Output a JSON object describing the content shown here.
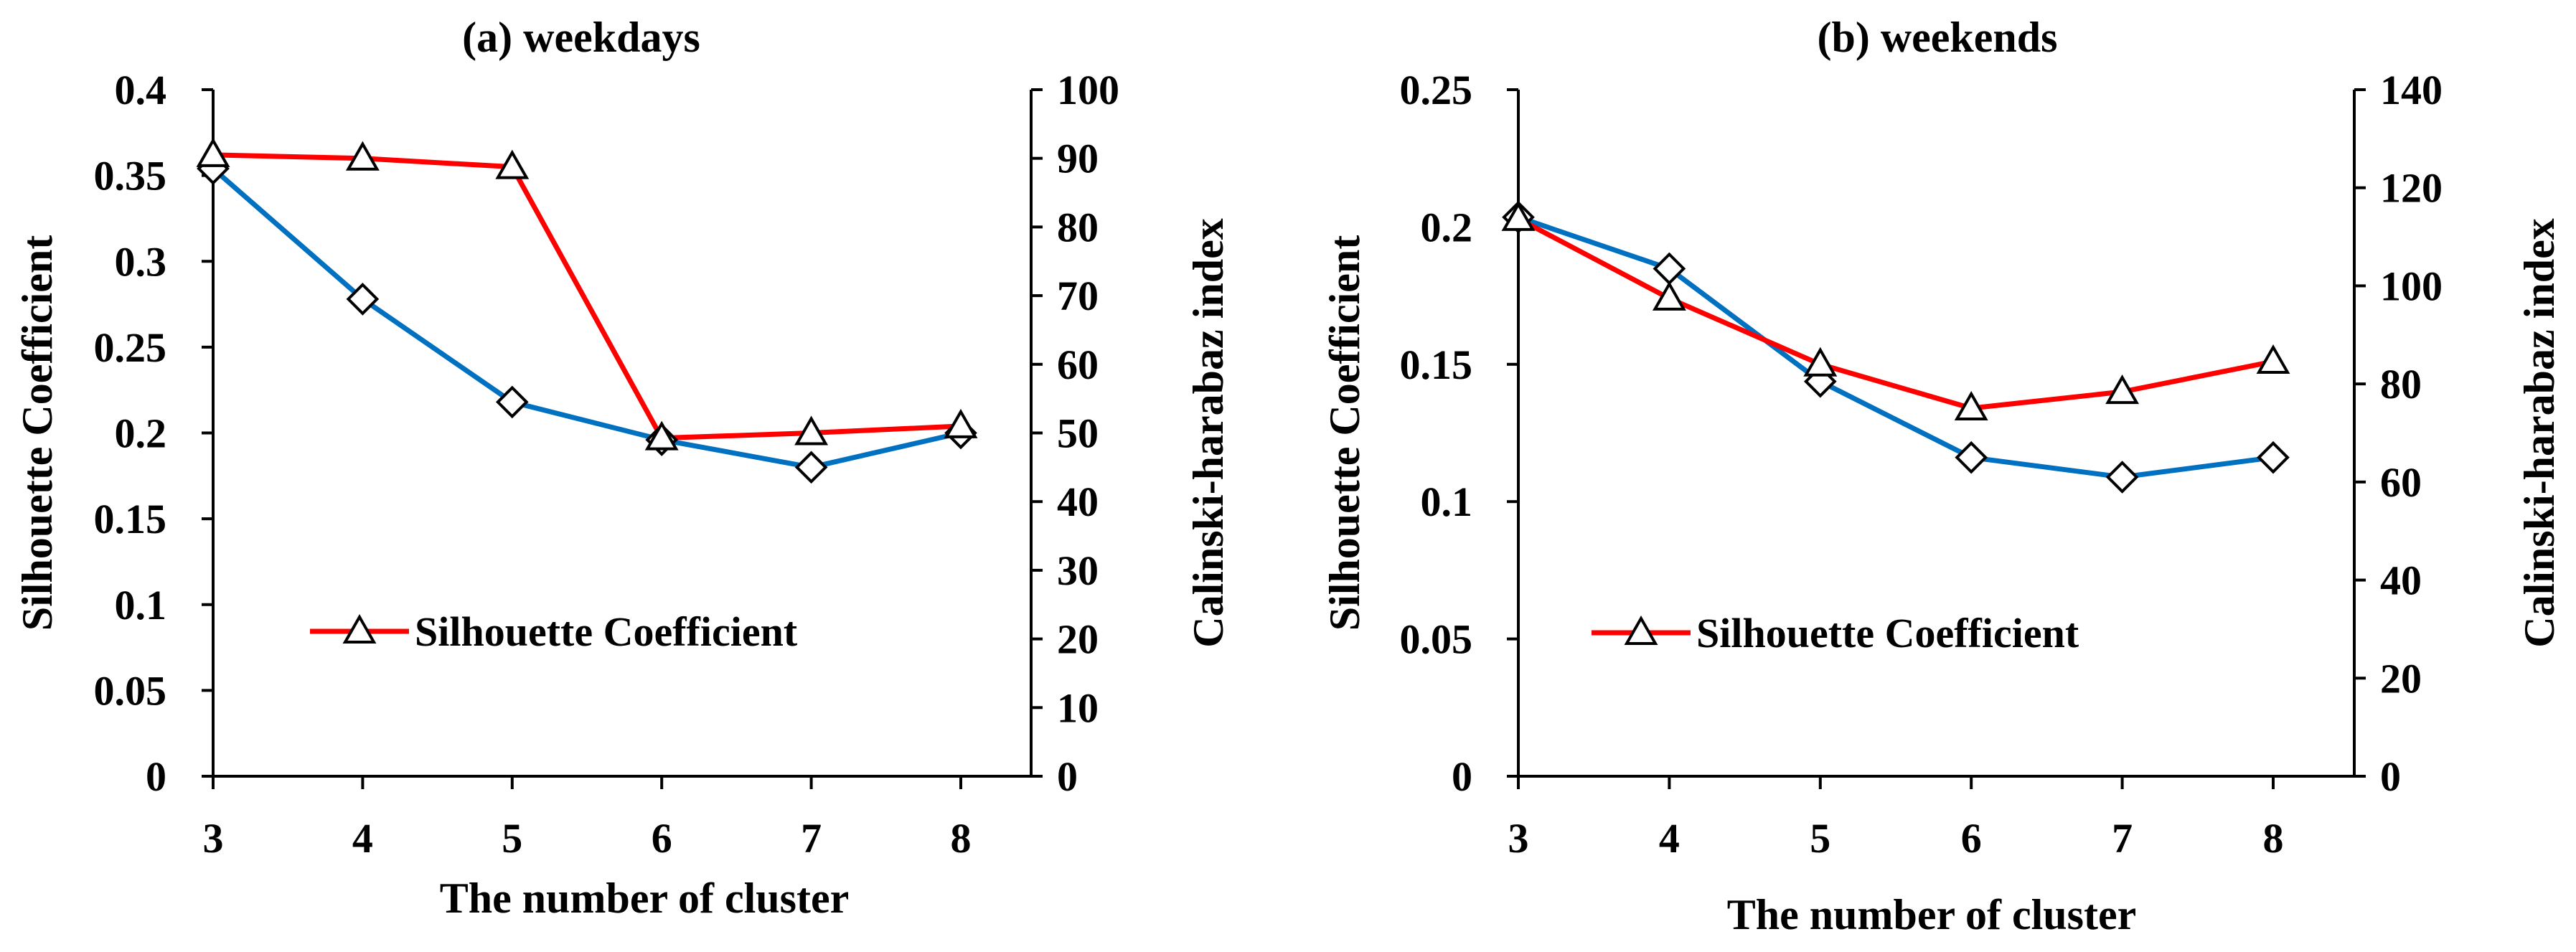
{
  "chart_data": [
    {
      "type": "line",
      "title": "(a) weekdays",
      "xlabel": "The number of cluster",
      "ylabel_left": "Silhouette Coefficient",
      "ylabel_right": "Calinski-harabaz index",
      "x": [
        3,
        4,
        5,
        6,
        7,
        8
      ],
      "x_tick_labels": [
        "3",
        "4",
        "5",
        "6",
        "7",
        "8"
      ],
      "ylim_left": [
        0,
        0.4
      ],
      "yticks_left": [
        "0",
        "0.05",
        "0.1",
        "0.15",
        "0.2",
        "0.25",
        "0.3",
        "0.35",
        "0.4"
      ],
      "ylim_right": [
        0,
        100
      ],
      "yticks_right": [
        "0",
        "10",
        "20",
        "30",
        "40",
        "50",
        "60",
        "70",
        "80",
        "90",
        "100"
      ],
      "series": [
        {
          "name": "Silhouette Coefficient",
          "axis": "left",
          "color": "#ff0000",
          "marker": "triangle",
          "values": [
            0.362,
            0.36,
            0.355,
            0.197,
            0.2,
            0.204
          ]
        },
        {
          "name": "Calinski-harabaz index",
          "axis": "right",
          "color": "#0070c0",
          "marker": "diamond",
          "values": [
            88.5,
            69.5,
            54.5,
            49,
            45,
            50
          ]
        }
      ],
      "legend": {
        "label": "Silhouette Coefficient",
        "placement": "lower-center"
      }
    },
    {
      "type": "line",
      "title": "(b) weekends",
      "xlabel": "The number of cluster",
      "ylabel_left": "Silhouette Coefficient",
      "ylabel_right": "Calinski-harabaz index",
      "x": [
        3,
        4,
        5,
        6,
        7,
        8
      ],
      "x_tick_labels": [
        "3",
        "4",
        "5",
        "6",
        "7",
        "8"
      ],
      "ylim_left": [
        0,
        0.25
      ],
      "yticks_left": [
        "0",
        "0.05",
        "0.1",
        "0.15",
        "0.2",
        "0.25"
      ],
      "ylim_right": [
        0,
        140
      ],
      "yticks_right": [
        "0",
        "20",
        "40",
        "60",
        "80",
        "100",
        "120",
        "140"
      ],
      "series": [
        {
          "name": "Silhouette Coefficient",
          "axis": "left",
          "color": "#ff0000",
          "marker": "triangle",
          "values": [
            0.203,
            0.174,
            0.15,
            0.134,
            0.14,
            0.151
          ]
        },
        {
          "name": "Calinski-harabaz index",
          "axis": "right",
          "color": "#0070c0",
          "marker": "diamond",
          "values": [
            114,
            103.5,
            80.5,
            65,
            61,
            65
          ]
        }
      ],
      "legend": {
        "label": "Silhouette Coefficient",
        "placement": "lower-center"
      }
    }
  ]
}
